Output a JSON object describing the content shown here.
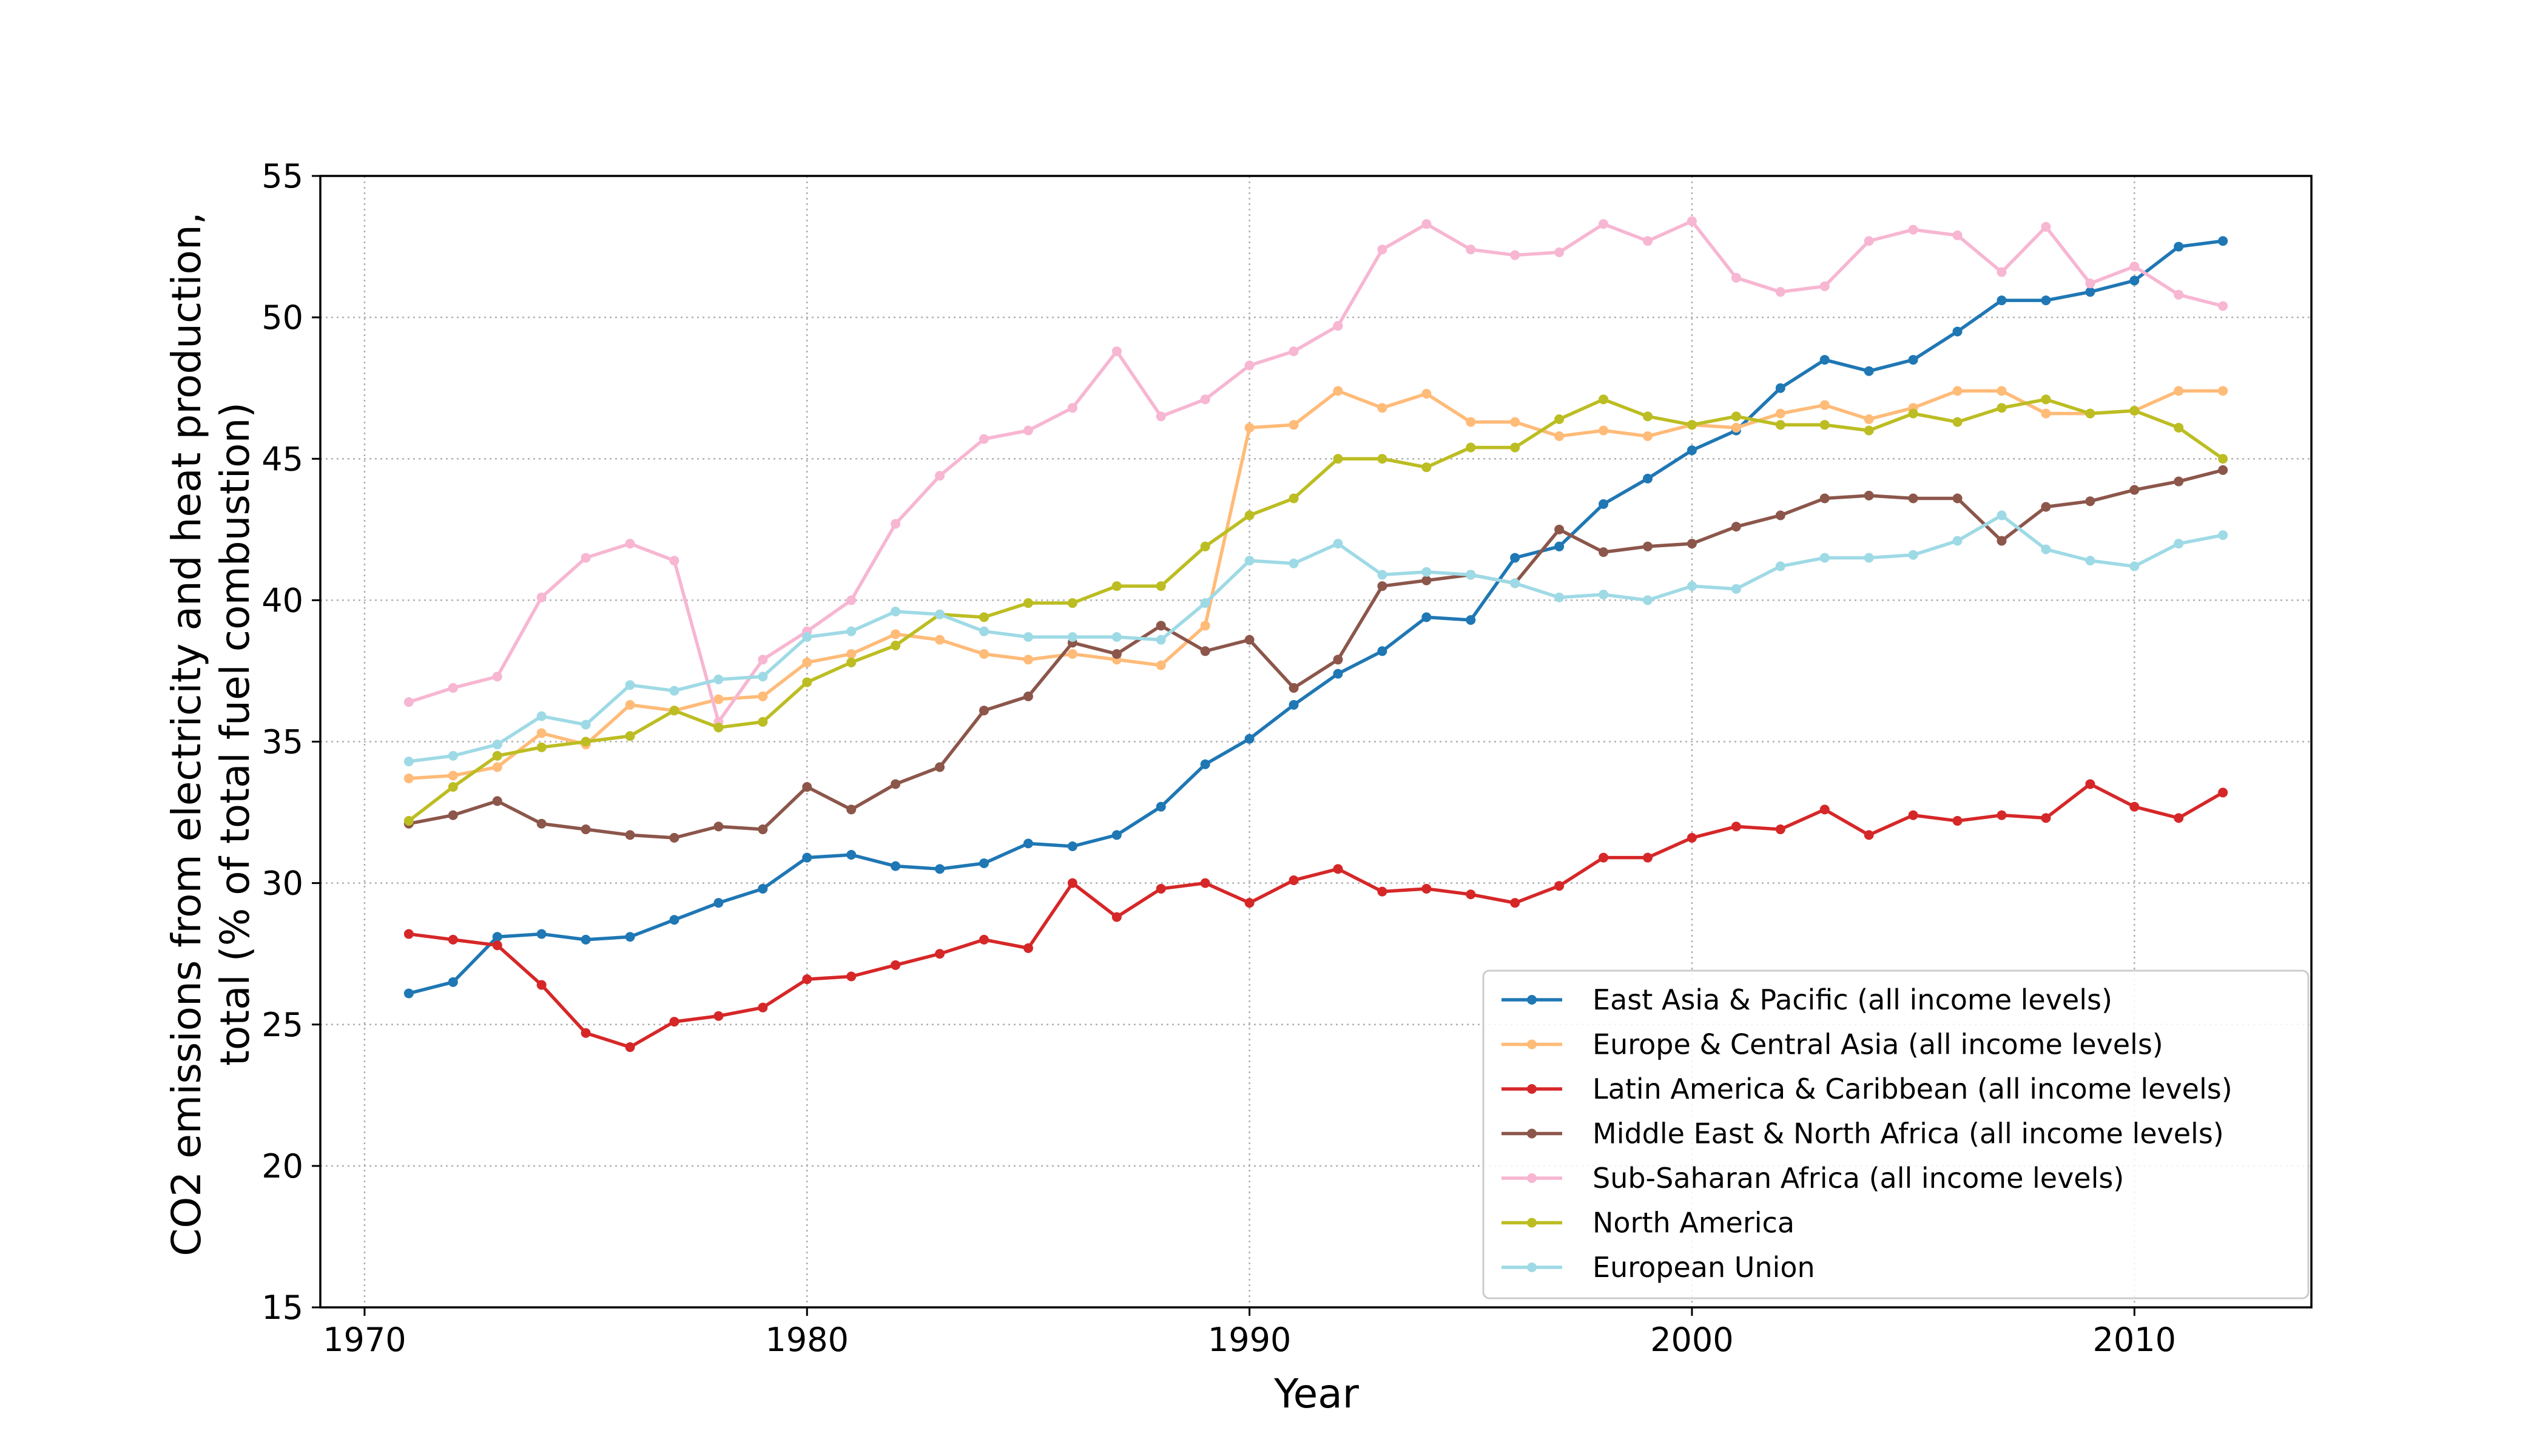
{
  "chart_data": {
    "type": "line",
    "xlabel": "Year",
    "ylabel_lines": [
      "CO2 emissions from electricity and heat production,",
      "total (% of total fuel combustion)"
    ],
    "xlim": [
      1969,
      2014
    ],
    "ylim": [
      15,
      55
    ],
    "xticks": [
      1970,
      1980,
      1990,
      2000,
      2010
    ],
    "yticks": [
      15,
      20,
      25,
      30,
      35,
      40,
      45,
      50,
      55
    ],
    "grid": true,
    "legend_position": "lower-right",
    "x": [
      1971,
      1972,
      1973,
      1974,
      1975,
      1976,
      1977,
      1978,
      1979,
      1980,
      1981,
      1982,
      1983,
      1984,
      1985,
      1986,
      1987,
      1988,
      1989,
      1990,
      1991,
      1992,
      1993,
      1994,
      1995,
      1996,
      1997,
      1998,
      1999,
      2000,
      2001,
      2002,
      2003,
      2004,
      2005,
      2006,
      2007,
      2008,
      2009,
      2010,
      2011,
      2012
    ],
    "series": [
      {
        "name": "East Asia & Pacific (all income levels)",
        "color": "#1f77b4",
        "values": [
          26.1,
          26.5,
          28.1,
          28.2,
          28.0,
          28.1,
          28.7,
          29.3,
          29.8,
          30.9,
          31.0,
          30.6,
          30.5,
          30.7,
          31.4,
          31.3,
          31.7,
          32.7,
          34.2,
          35.1,
          36.3,
          37.4,
          38.2,
          39.4,
          39.3,
          41.5,
          41.9,
          43.4,
          44.3,
          45.3,
          46.0,
          47.5,
          48.5,
          48.1,
          48.5,
          49.5,
          50.6,
          50.6,
          50.9,
          51.3,
          52.5,
          52.7
        ]
      },
      {
        "name": "Europe & Central Asia (all income levels)",
        "color": "#ffbb78",
        "values": [
          33.7,
          33.8,
          34.1,
          35.3,
          34.9,
          36.3,
          36.1,
          36.5,
          36.6,
          37.8,
          38.1,
          38.8,
          38.6,
          38.1,
          37.9,
          38.1,
          37.9,
          37.7,
          39.1,
          46.1,
          46.2,
          47.4,
          46.8,
          47.3,
          46.3,
          46.3,
          45.8,
          46.0,
          45.8,
          46.2,
          46.1,
          46.6,
          46.9,
          46.4,
          46.8,
          47.4,
          47.4,
          46.6,
          46.6,
          46.7,
          47.4,
          47.4
        ]
      },
      {
        "name": "Latin America & Caribbean (all income levels)",
        "color": "#d62728",
        "values": [
          28.2,
          28.0,
          27.8,
          26.4,
          24.7,
          24.2,
          25.1,
          25.3,
          25.6,
          26.6,
          26.7,
          27.1,
          27.5,
          28.0,
          27.7,
          30.0,
          28.8,
          29.8,
          30.0,
          29.3,
          30.1,
          30.5,
          29.7,
          29.8,
          29.6,
          29.3,
          29.9,
          30.9,
          30.9,
          31.6,
          32.0,
          31.9,
          32.6,
          31.7,
          32.4,
          32.2,
          32.4,
          32.3,
          33.5,
          32.7,
          32.3,
          33.2
        ]
      },
      {
        "name": "Middle East & North Africa (all income levels)",
        "color": "#8c564b",
        "values": [
          32.1,
          32.4,
          32.9,
          32.1,
          31.9,
          31.7,
          31.6,
          32.0,
          31.9,
          33.4,
          32.6,
          33.5,
          34.1,
          36.1,
          36.6,
          38.5,
          38.1,
          39.1,
          38.2,
          38.6,
          36.9,
          37.9,
          40.5,
          40.7,
          40.9,
          40.6,
          42.5,
          41.7,
          41.9,
          42.0,
          42.6,
          43.0,
          43.6,
          43.7,
          43.6,
          43.6,
          42.1,
          43.3,
          43.5,
          43.9,
          44.2,
          44.6
        ]
      },
      {
        "name": "Sub-Saharan Africa (all income levels)",
        "color": "#f7b6d2",
        "values": [
          36.4,
          36.9,
          37.3,
          40.1,
          41.5,
          42.0,
          41.4,
          35.7,
          37.9,
          38.9,
          40.0,
          42.7,
          44.4,
          45.7,
          46.0,
          46.8,
          48.8,
          46.5,
          47.1,
          48.3,
          48.8,
          49.7,
          52.4,
          53.3,
          52.4,
          52.2,
          52.3,
          53.3,
          52.7,
          53.4,
          51.4,
          50.9,
          51.1,
          52.7,
          53.1,
          52.9,
          51.6,
          53.2,
          51.2,
          51.8,
          50.8,
          50.4
        ]
      },
      {
        "name": "North America",
        "color": "#bcbd22",
        "values": [
          32.2,
          33.4,
          34.5,
          34.8,
          35.0,
          35.2,
          36.1,
          35.5,
          35.7,
          37.1,
          37.8,
          38.4,
          39.5,
          39.4,
          39.9,
          39.9,
          40.5,
          40.5,
          41.9,
          43.0,
          43.6,
          45.0,
          45.0,
          44.7,
          45.4,
          45.4,
          46.4,
          47.1,
          46.5,
          46.2,
          46.5,
          46.2,
          46.2,
          46.0,
          46.6,
          46.3,
          46.8,
          47.1,
          46.6,
          46.7,
          46.1,
          45.0
        ]
      },
      {
        "name": "European Union",
        "color": "#9edae5",
        "values": [
          34.3,
          34.5,
          34.9,
          35.9,
          35.6,
          37.0,
          36.8,
          37.2,
          37.3,
          38.7,
          38.9,
          39.6,
          39.5,
          38.9,
          38.7,
          38.7,
          38.7,
          38.6,
          39.9,
          41.4,
          41.3,
          42.0,
          40.9,
          41.0,
          40.9,
          40.6,
          40.1,
          40.2,
          40.0,
          40.5,
          40.4,
          41.2,
          41.5,
          41.5,
          41.6,
          42.1,
          43.0,
          41.8,
          41.4,
          41.2,
          42.0,
          42.3
        ]
      }
    ]
  }
}
